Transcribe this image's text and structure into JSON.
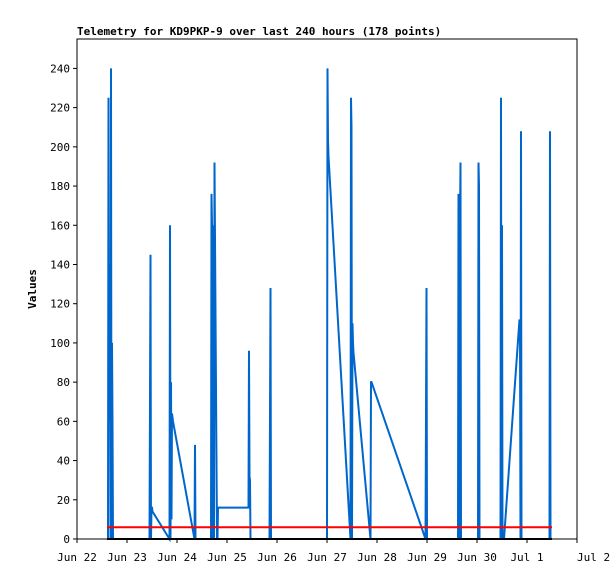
{
  "chart_data": {
    "type": "line",
    "title": "Telemetry for KD9PKP-9 over last 240 hours (178 points)",
    "xlabel": "",
    "ylabel": "Values",
    "x_ticks": [
      "Jun 22",
      "Jun 23",
      "Jun 24",
      "Jun 25",
      "Jun 26",
      "Jun 27",
      "Jun 28",
      "Jun 29",
      "Jun 30",
      "Jul 1",
      "Jul 2"
    ],
    "y_ticks": [
      0,
      20,
      40,
      60,
      80,
      100,
      120,
      140,
      160,
      180,
      200,
      220,
      240
    ],
    "xlim": [
      0,
      10
    ],
    "ylim": [
      0,
      255
    ],
    "grid": false,
    "series": [
      {
        "color": "#0066cc",
        "x": [
          0.62,
          0.63,
          0.64,
          0.65,
          0.66,
          0.67,
          0.68,
          0.69,
          0.7,
          0.71,
          0.72,
          0.73,
          1.45,
          1.46,
          1.47,
          1.48,
          1.49,
          1.5,
          1.51,
          1.85,
          1.86,
          1.87,
          1.88,
          1.89,
          1.9,
          1.91,
          1.92,
          2.35,
          2.36,
          2.37,
          2.68,
          2.69,
          2.7,
          2.71,
          2.72,
          2.73,
          2.74,
          2.75,
          2.8,
          2.81,
          2.82,
          2.83,
          2.84,
          3.43,
          3.44,
          3.45,
          3.46,
          3.47,
          3.48,
          3.85,
          3.86,
          3.87,
          3.88,
          5.0,
          5.01,
          5.02,
          5.03,
          5.47,
          5.48,
          5.49,
          5.5,
          5.51,
          5.52,
          5.53,
          5.87,
          5.88,
          5.89,
          6.97,
          6.98,
          6.99,
          7.0,
          7.01,
          7.62,
          7.63,
          7.64,
          7.65,
          7.66,
          7.67,
          7.68,
          7.69,
          8.02,
          8.03,
          8.04,
          8.05,
          8.06,
          8.47,
          8.48,
          8.49,
          8.5,
          8.51,
          8.52,
          8.53,
          8.54,
          8.85,
          8.86,
          8.87,
          8.88,
          8.89,
          9.45,
          9.46,
          9.47
        ],
        "y": [
          0,
          225,
          60,
          140,
          100,
          0,
          240,
          0,
          100,
          60,
          0,
          0,
          0,
          72,
          145,
          0,
          16,
          16,
          14,
          0,
          160,
          0,
          80,
          10,
          64,
          62,
          60,
          0,
          48,
          0,
          0,
          176,
          160,
          0,
          10,
          160,
          0,
          192,
          0,
          0,
          16,
          16,
          16,
          16,
          96,
          32,
          30,
          0,
          0,
          0,
          64,
          128,
          0,
          0,
          240,
          204,
          195,
          0,
          225,
          210,
          0,
          110,
          100,
          95,
          0,
          80,
          80,
          0,
          64,
          128,
          0,
          0,
          0,
          176,
          0,
          96,
          160,
          192,
          0,
          0,
          0,
          192,
          180,
          0,
          0,
          0,
          225,
          0,
          160,
          0,
          0,
          0,
          0,
          112,
          108,
          0,
          208,
          0,
          0,
          208,
          0
        ]
      },
      {
        "color": "#ff0000",
        "x": [
          0.6,
          9.5
        ],
        "y": [
          6,
          6
        ]
      },
      {
        "color": "#000000",
        "x": [
          0.6,
          9.5
        ],
        "y": [
          0,
          0
        ]
      }
    ]
  }
}
